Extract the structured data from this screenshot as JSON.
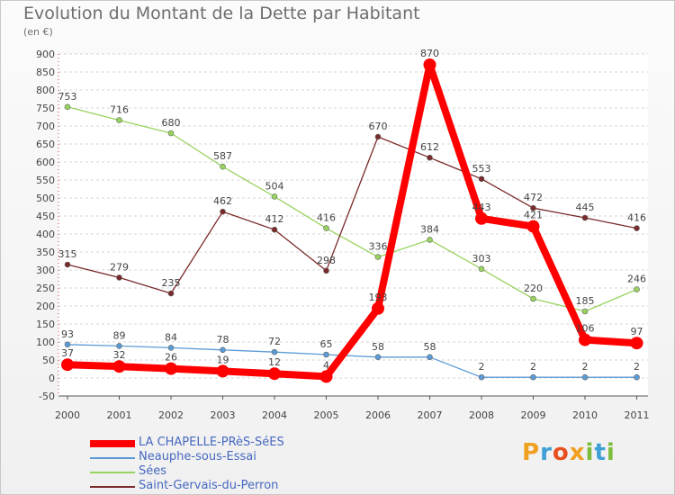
{
  "header": {
    "title": "Evolution du Montant de la Dette par Habitant",
    "subtitle": "(en €)"
  },
  "logo": {
    "letters": [
      {
        "ch": "P",
        "color": "#f0a020"
      },
      {
        "ch": "r",
        "color": "#3fa0d8"
      },
      {
        "ch": "o",
        "color": "#e85020"
      },
      {
        "ch": "x",
        "color": "#f0a020"
      },
      {
        "ch": "i",
        "color": "#7cbc3c"
      },
      {
        "ch": "t",
        "color": "#3fa0d8"
      },
      {
        "ch": "i",
        "color": "#7cbc3c"
      }
    ]
  },
  "chart_data": {
    "type": "line",
    "title": "Evolution du Montant de la Dette par Habitant",
    "subtitle": "(en €)",
    "x": [
      "2000",
      "2001",
      "2002",
      "2003",
      "2004",
      "2005",
      "2006",
      "2007",
      "2008",
      "2009",
      "2010",
      "2011"
    ],
    "ylim": [
      -50,
      900
    ],
    "yticks": [
      -50,
      0,
      50,
      100,
      150,
      200,
      250,
      300,
      350,
      400,
      450,
      500,
      550,
      600,
      650,
      700,
      750,
      800,
      850,
      900
    ],
    "grid": "horizontal dashed",
    "legend": "bottom-left",
    "series": [
      {
        "name": "LA CHAPELLE-PRèS-SéES",
        "color": "#ff0000",
        "width": 8,
        "marker": 7,
        "values": [
          37,
          32,
          26,
          19,
          12,
          4,
          193,
          870,
          443,
          421,
          106,
          97
        ],
        "labels": [
          "37",
          "32",
          "26",
          "19",
          "12",
          "4",
          "193",
          "870",
          "443",
          "421",
          "106",
          "97"
        ]
      },
      {
        "name": "Neauphe-sous-Essai",
        "color": "#5b9bd5",
        "width": 1.3,
        "marker": 3,
        "values": [
          93,
          89,
          84,
          78,
          72,
          65,
          58,
          58,
          2,
          2,
          2,
          2
        ],
        "labels": [
          "93",
          "89",
          "84",
          "78",
          "72",
          "65",
          "58",
          "58",
          "2",
          "2",
          "2",
          "2"
        ]
      },
      {
        "name": "Sées",
        "color": "#99d35f",
        "width": 1.3,
        "marker": 3,
        "values": [
          753,
          716,
          680,
          587,
          504,
          416,
          336,
          384,
          303,
          220,
          185,
          246
        ],
        "labels": [
          "753",
          "716",
          "680",
          "587",
          "504",
          "416",
          "336",
          "384",
          "303",
          "220",
          "185",
          "246"
        ]
      },
      {
        "name": "Saint-Gervais-du-Perron",
        "color": "#7a2a2a",
        "width": 1.3,
        "marker": 3,
        "values": [
          315,
          279,
          235,
          462,
          412,
          298,
          670,
          612,
          553,
          472,
          445,
          416
        ],
        "labels": [
          "315",
          "279",
          "235",
          "462",
          "412",
          "298",
          "670",
          "612",
          "553",
          "472",
          "445",
          "416"
        ]
      }
    ]
  }
}
